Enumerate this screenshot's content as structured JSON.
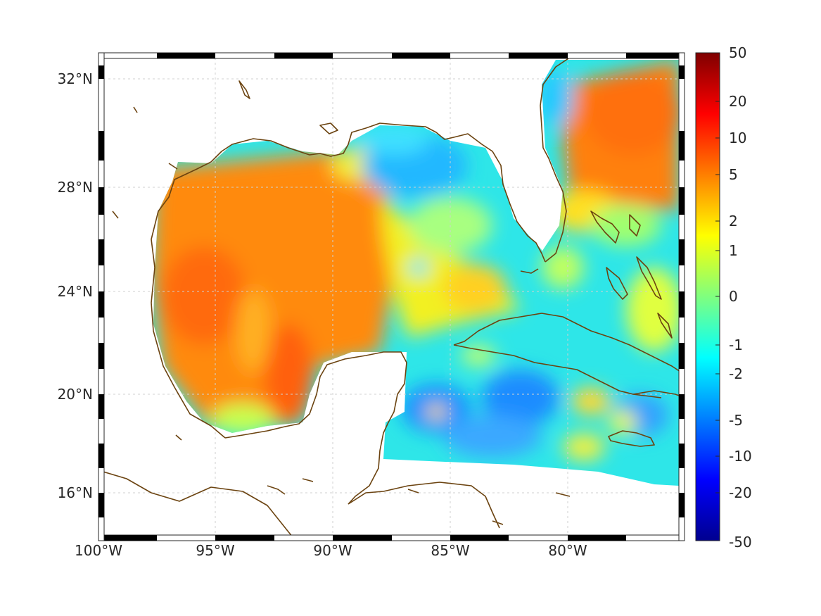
{
  "map": {
    "projection_note": "",
    "x_ticks": [
      "100°W",
      "95°W",
      "90°W",
      "85°W",
      "80°W"
    ],
    "x_tick_values": [
      -100,
      -95,
      -90,
      -85,
      -80
    ],
    "y_ticks": [
      "32°N",
      "28°N",
      "24°N",
      "20°N",
      "16°N"
    ],
    "y_tick_values": [
      32,
      28,
      24,
      20,
      16
    ],
    "lon_range": [
      -100,
      -75.1
    ],
    "lat_range": [
      14.3,
      33
    ],
    "grid": true,
    "coastline_color": "#6b4310",
    "land_color": "#ffffff"
  },
  "colorbar": {
    "tick_labels": [
      "50",
      "20",
      "10",
      "5",
      "2",
      "1",
      "0",
      "-1",
      "-2",
      "-5",
      "-10",
      "-20",
      "-50"
    ],
    "colormap": "jet",
    "colors": [
      "#00008f",
      "#0000ff",
      "#007fff",
      "#00ffff",
      "#7fff7f",
      "#ffff00",
      "#ff7f00",
      "#ff0000",
      "#7f0000"
    ]
  },
  "chart_data": {
    "type": "heatmap",
    "title": "",
    "xlabel": "",
    "ylabel": "",
    "x_ticks": [
      "100°W",
      "95°W",
      "90°W",
      "85°W",
      "80°W"
    ],
    "y_ticks": [
      "32°N",
      "28°N",
      "24°N",
      "20°N",
      "16°N"
    ],
    "colorbar_ticks": [
      50,
      20,
      10,
      5,
      2,
      1,
      0,
      -1,
      -2,
      -5,
      -10,
      -20,
      -50
    ],
    "colorbar_range": [
      -50,
      50
    ],
    "regions": [
      {
        "name": "western Gulf of Mexico",
        "approx_value": 5
      },
      {
        "name": "eastern Gulf of Mexico",
        "approx_value": -1.5
      },
      {
        "name": "Atlantic east of Florida",
        "approx_value": 5
      },
      {
        "name": "Caribbean Sea",
        "approx_value": -2.5
      }
    ]
  }
}
